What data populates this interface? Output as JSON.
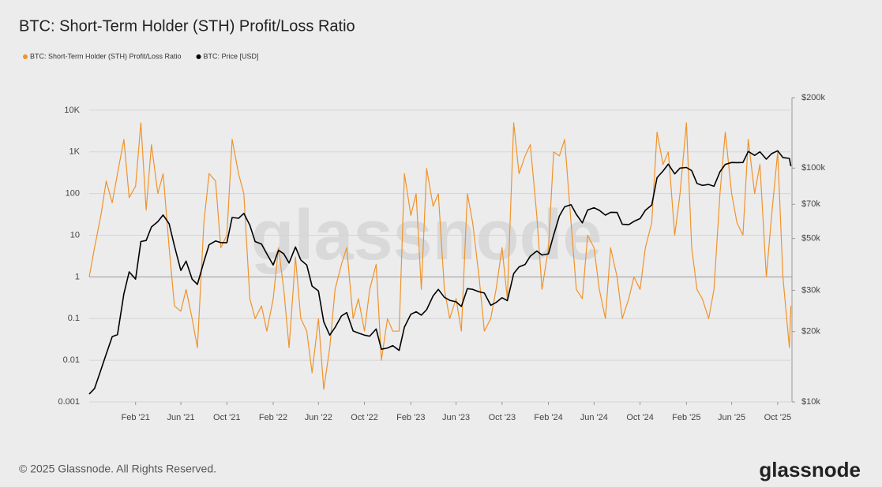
{
  "chart_data": {
    "type": "line",
    "title": "BTC: Short-Term Holder (STH) Profit/Loss Ratio",
    "watermark": "glassnode",
    "footer": "© 2025 Glassnode. All Rights Reserved.",
    "logo": "glassnode",
    "grid": true,
    "legend": "top-left",
    "x": [
      "2020-10-01",
      "2020-10-15",
      "2020-11-01",
      "2020-11-15",
      "2020-12-01",
      "2020-12-15",
      "2021-01-01",
      "2021-01-15",
      "2021-02-01",
      "2021-02-15",
      "2021-03-01",
      "2021-03-15",
      "2021-04-01",
      "2021-04-15",
      "2021-05-01",
      "2021-05-15",
      "2021-06-01",
      "2021-06-15",
      "2021-07-01",
      "2021-07-15",
      "2021-08-01",
      "2021-08-15",
      "2021-09-01",
      "2021-09-15",
      "2021-10-01",
      "2021-10-15",
      "2021-11-01",
      "2021-11-15",
      "2021-12-01",
      "2021-12-15",
      "2022-01-01",
      "2022-01-15",
      "2022-02-01",
      "2022-02-15",
      "2022-03-01",
      "2022-03-15",
      "2022-04-01",
      "2022-04-15",
      "2022-05-01",
      "2022-05-15",
      "2022-06-01",
      "2022-06-15",
      "2022-07-01",
      "2022-07-15",
      "2022-08-01",
      "2022-08-15",
      "2022-09-01",
      "2022-09-15",
      "2022-10-01",
      "2022-10-15",
      "2022-11-01",
      "2022-11-15",
      "2022-12-01",
      "2022-12-15",
      "2023-01-01",
      "2023-01-15",
      "2023-02-01",
      "2023-02-15",
      "2023-03-01",
      "2023-03-15",
      "2023-04-01",
      "2023-04-15",
      "2023-05-01",
      "2023-05-15",
      "2023-06-01",
      "2023-06-15",
      "2023-07-01",
      "2023-07-15",
      "2023-08-01",
      "2023-08-15",
      "2023-09-01",
      "2023-09-15",
      "2023-10-01",
      "2023-10-15",
      "2023-11-01",
      "2023-11-15",
      "2023-12-01",
      "2023-12-15",
      "2024-01-01",
      "2024-01-15",
      "2024-02-01",
      "2024-02-15",
      "2024-03-01",
      "2024-03-15",
      "2024-04-01",
      "2024-04-15",
      "2024-05-01",
      "2024-05-15",
      "2024-06-01",
      "2024-06-15",
      "2024-07-01",
      "2024-07-15",
      "2024-08-01",
      "2024-08-15",
      "2024-09-01",
      "2024-09-15",
      "2024-10-01",
      "2024-10-15",
      "2024-11-01",
      "2024-11-15",
      "2024-12-01",
      "2024-12-15",
      "2025-01-01",
      "2025-01-15",
      "2025-02-01",
      "2025-02-15",
      "2025-03-01",
      "2025-03-15",
      "2025-04-01",
      "2025-04-15",
      "2025-05-01",
      "2025-05-15",
      "2025-06-01",
      "2025-06-15",
      "2025-07-01",
      "2025-07-15",
      "2025-08-01",
      "2025-08-15",
      "2025-09-01",
      "2025-09-15",
      "2025-10-01",
      "2025-10-15",
      "2025-11-01",
      "2025-11-05"
    ],
    "xlim": [
      "2020-10-01",
      "2025-11-08"
    ],
    "xticks": [
      {
        "value": "2021-02-01",
        "label": "Feb '21"
      },
      {
        "value": "2021-06-01",
        "label": "Jun '21"
      },
      {
        "value": "2021-10-01",
        "label": "Oct '21"
      },
      {
        "value": "2022-02-01",
        "label": "Feb '22"
      },
      {
        "value": "2022-06-01",
        "label": "Jun '22"
      },
      {
        "value": "2022-10-01",
        "label": "Oct '22"
      },
      {
        "value": "2023-02-01",
        "label": "Feb '23"
      },
      {
        "value": "2023-06-01",
        "label": "Jun '23"
      },
      {
        "value": "2023-10-01",
        "label": "Oct '23"
      },
      {
        "value": "2024-02-01",
        "label": "Feb '24"
      },
      {
        "value": "2024-06-01",
        "label": "Jun '24"
      },
      {
        "value": "2024-10-01",
        "label": "Oct '24"
      },
      {
        "value": "2025-02-01",
        "label": "Feb '25"
      },
      {
        "value": "2025-06-01",
        "label": "Jun '25"
      },
      {
        "value": "2025-10-01",
        "label": "Oct '25"
      }
    ],
    "ylim": [
      0.001,
      20000
    ],
    "log_y": true,
    "yticks": [
      0.001,
      0.01,
      0.1,
      1,
      10,
      100,
      {
        "value": 1000,
        "label": "1K"
      },
      {
        "value": 10000,
        "label": "10K"
      }
    ],
    "y2lim": [
      10000,
      200000
    ],
    "log_y2": true,
    "y2ticks": [
      {
        "value": 10000,
        "label": "$10k"
      },
      {
        "value": 20000,
        "label": "$20k"
      },
      {
        "value": 30000,
        "label": "$30k"
      },
      {
        "value": 50000,
        "label": "$50k"
      },
      {
        "value": 70000,
        "label": "$70k"
      },
      {
        "value": 100000,
        "label": "$100k"
      },
      {
        "value": 200000,
        "label": "$200k"
      }
    ],
    "series": [
      {
        "name": "BTC: Short-Term Holder (STH) Profit/Loss Ratio",
        "color": "#f0932b",
        "axis": "y",
        "values": [
          1,
          5,
          30,
          200,
          60,
          300,
          2000,
          80,
          150,
          5000,
          40,
          1500,
          100,
          300,
          5,
          0.2,
          0.15,
          0.5,
          0.1,
          0.02,
          20,
          300,
          200,
          5,
          10,
          2000,
          300,
          100,
          0.3,
          0.1,
          0.2,
          0.05,
          0.3,
          5,
          0.5,
          0.02,
          3,
          0.1,
          0.05,
          0.005,
          0.1,
          0.002,
          0.02,
          0.5,
          2,
          5,
          0.1,
          0.3,
          0.05,
          0.5,
          2,
          0.01,
          0.1,
          0.05,
          0.05,
          300,
          30,
          100,
          0.5,
          400,
          50,
          100,
          0.5,
          0.1,
          0.3,
          0.05,
          100,
          20,
          1,
          0.05,
          0.1,
          0.5,
          5,
          0.3,
          5000,
          300,
          800,
          1500,
          30,
          0.5,
          5,
          1000,
          800,
          2000,
          20,
          0.5,
          0.3,
          10,
          5,
          0.5,
          0.1,
          5,
          1,
          0.1,
          0.3,
          1,
          0.5,
          5,
          20,
          3000,
          500,
          1000,
          10,
          100,
          5000,
          5,
          0.5,
          0.3,
          0.1,
          0.5,
          100,
          3000,
          100,
          20,
          10,
          2000,
          100,
          500,
          1,
          30,
          1000,
          1,
          0.02,
          0.2
        ]
      },
      {
        "name": "BTC: Price [USD]",
        "color": "#000000",
        "axis": "y2",
        "values": [
          10800,
          11400,
          13700,
          16000,
          19000,
          19400,
          29000,
          36000,
          33500,
          48500,
          49000,
          56000,
          59000,
          63000,
          57800,
          46500,
          36500,
          40000,
          33500,
          31800,
          39800,
          47000,
          48800,
          48000,
          48000,
          61500,
          61000,
          64000,
          57000,
          48500,
          47300,
          43000,
          38500,
          44500,
          43000,
          39300,
          46000,
          40500,
          38500,
          31300,
          29800,
          22000,
          19300,
          20800,
          23300,
          24100,
          20100,
          19700,
          19300,
          19100,
          20500,
          16800,
          17000,
          17400,
          16600,
          20900,
          23700,
          24300,
          23500,
          24800,
          28400,
          30300,
          28000,
          27200,
          26800,
          25600,
          30500,
          30300,
          29600,
          29200,
          25900,
          26600,
          27900,
          27100,
          35400,
          37800,
          38700,
          42000,
          44200,
          42500,
          43000,
          51800,
          62400,
          68300,
          69700,
          63400,
          58300,
          66200,
          67700,
          66000,
          62900,
          64700,
          64600,
          57500,
          57300,
          59200,
          60800,
          66000,
          69500,
          91000,
          97200,
          104000,
          94400,
          100000,
          100600,
          97500,
          86000,
          84300,
          85100,
          83600,
          96400,
          103700,
          105700,
          105500,
          105700,
          117800,
          113300,
          117400,
          109200,
          115300,
          118600,
          111000,
          110000,
          102000
        ]
      }
    ]
  }
}
